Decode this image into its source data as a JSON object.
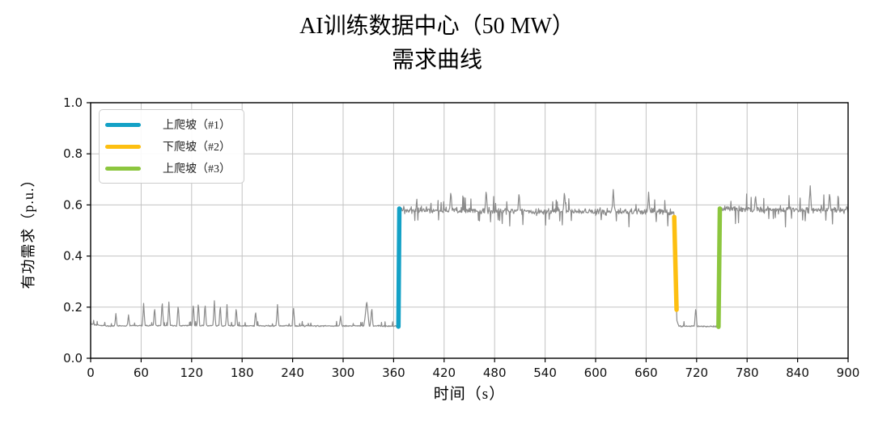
{
  "chart_data": {
    "type": "line",
    "title": "AI训练数据中心（50 MW）\n需求曲线",
    "title_lines": [
      "AI训练数据中心（50 MW）",
      "需求曲线"
    ],
    "xlabel": "时间（s）",
    "ylabel": "有功需求（p.u.）",
    "xlim": [
      0,
      900
    ],
    "ylim": [
      0.0,
      1.0
    ],
    "xticks": [
      0,
      60,
      120,
      180,
      240,
      300,
      360,
      420,
      480,
      540,
      600,
      660,
      720,
      780,
      840,
      900
    ],
    "yticks": [
      0.0,
      0.2,
      0.4,
      0.6,
      0.8,
      1.0
    ],
    "ytick_labels": [
      "0.0",
      "0.2",
      "0.4",
      "0.6",
      "0.8",
      "1.0"
    ],
    "grid": true,
    "colors": {
      "curve": "#8b8b8b",
      "grid": "#c3c3c3",
      "spine": "#000000",
      "tick_label": "#111111"
    },
    "legend": {
      "location": "upper left",
      "entries": [
        {
          "label": "上爬坡（#1）",
          "color": "#13a1c6"
        },
        {
          "label": "下爬坡（#2）",
          "color": "#fdbf11"
        },
        {
          "label": "上爬坡（#3）",
          "color": "#8cc63e"
        }
      ]
    },
    "series": [
      {
        "name": "有功需求",
        "color": "#8b8b8b",
        "units": "p.u.",
        "baseline_breakpoints": [
          [
            0,
            0.133
          ],
          [
            22,
            0.126
          ],
          [
            60,
            0.128
          ],
          [
            365.5,
            0.126
          ],
          [
            366.6,
            0.58
          ],
          [
            420,
            0.578
          ],
          [
            693.2,
            0.572
          ],
          [
            696.4,
            0.148
          ],
          [
            699,
            0.126
          ],
          [
            745.8,
            0.124
          ],
          [
            747.4,
            0.583
          ],
          [
            900,
            0.58
          ]
        ],
        "noise_bands": [
          {
            "t": [
              0,
              365
            ],
            "amp": 0.0045
          },
          {
            "t": [
              366.8,
              693
            ],
            "amp": 0.021
          },
          {
            "t": [
              697,
              745.5
            ],
            "amp": 0.004
          },
          {
            "t": [
              747.6,
              900
            ],
            "amp": 0.021
          }
        ],
        "spikes": [
          {
            "t": 30,
            "peak": 0.175,
            "width": 1.5
          },
          {
            "t": 45,
            "peak": 0.17,
            "width": 1.5
          },
          {
            "t": 63,
            "peak": 0.215,
            "width": 1.6
          },
          {
            "t": 76,
            "peak": 0.2,
            "width": 1.5
          },
          {
            "t": 85,
            "peak": 0.225,
            "width": 1.6
          },
          {
            "t": 93,
            "peak": 0.22,
            "width": 1.6
          },
          {
            "t": 104,
            "peak": 0.21,
            "width": 1.6
          },
          {
            "t": 122,
            "peak": 0.215,
            "width": 1.6
          },
          {
            "t": 128,
            "peak": 0.22,
            "width": 1.6
          },
          {
            "t": 136,
            "peak": 0.215,
            "width": 1.6
          },
          {
            "t": 147,
            "peak": 0.225,
            "width": 1.6
          },
          {
            "t": 154,
            "peak": 0.21,
            "width": 1.5
          },
          {
            "t": 162,
            "peak": 0.21,
            "width": 1.5
          },
          {
            "t": 173,
            "peak": 0.2,
            "width": 1.5
          },
          {
            "t": 196,
            "peak": 0.185,
            "width": 1.5
          },
          {
            "t": 222,
            "peak": 0.21,
            "width": 1.6
          },
          {
            "t": 241,
            "peak": 0.205,
            "width": 1.6
          },
          {
            "t": 297,
            "peak": 0.165,
            "width": 1.5
          },
          {
            "t": 328,
            "peak": 0.225,
            "width": 3.0
          },
          {
            "t": 334,
            "peak": 0.2,
            "width": 1.6
          },
          {
            "t": 428,
            "peak": 0.655,
            "width": 1.6
          },
          {
            "t": 470,
            "peak": 0.66,
            "width": 1.6
          },
          {
            "t": 509,
            "peak": 0.65,
            "width": 1.5
          },
          {
            "t": 563,
            "peak": 0.655,
            "width": 1.6
          },
          {
            "t": 621,
            "peak": 0.66,
            "width": 1.6
          },
          {
            "t": 663,
            "peak": 0.65,
            "width": 1.5
          },
          {
            "t": 719,
            "peak": 0.2,
            "width": 1.6
          },
          {
            "t": 790,
            "peak": 0.64,
            "width": 1.5
          },
          {
            "t": 855,
            "peak": 0.675,
            "width": 1.6
          },
          {
            "t": 878,
            "peak": 0.65,
            "width": 1.5
          }
        ]
      }
    ],
    "ramp_markers": [
      {
        "label": "上爬坡（#1）",
        "color": "#13a1c6",
        "t_start": 365.7,
        "t_end": 366.8,
        "v_start": 0.124,
        "v_end": 0.586
      },
      {
        "label": "下爬坡（#2）",
        "color": "#fdbf11",
        "t_start": 693.4,
        "t_end": 696.2,
        "v_start": 0.553,
        "v_end": 0.19
      },
      {
        "label": "上爬坡（#3）",
        "color": "#8cc63e",
        "t_start": 746.0,
        "t_end": 747.6,
        "v_start": 0.123,
        "v_end": 0.586
      }
    ]
  }
}
